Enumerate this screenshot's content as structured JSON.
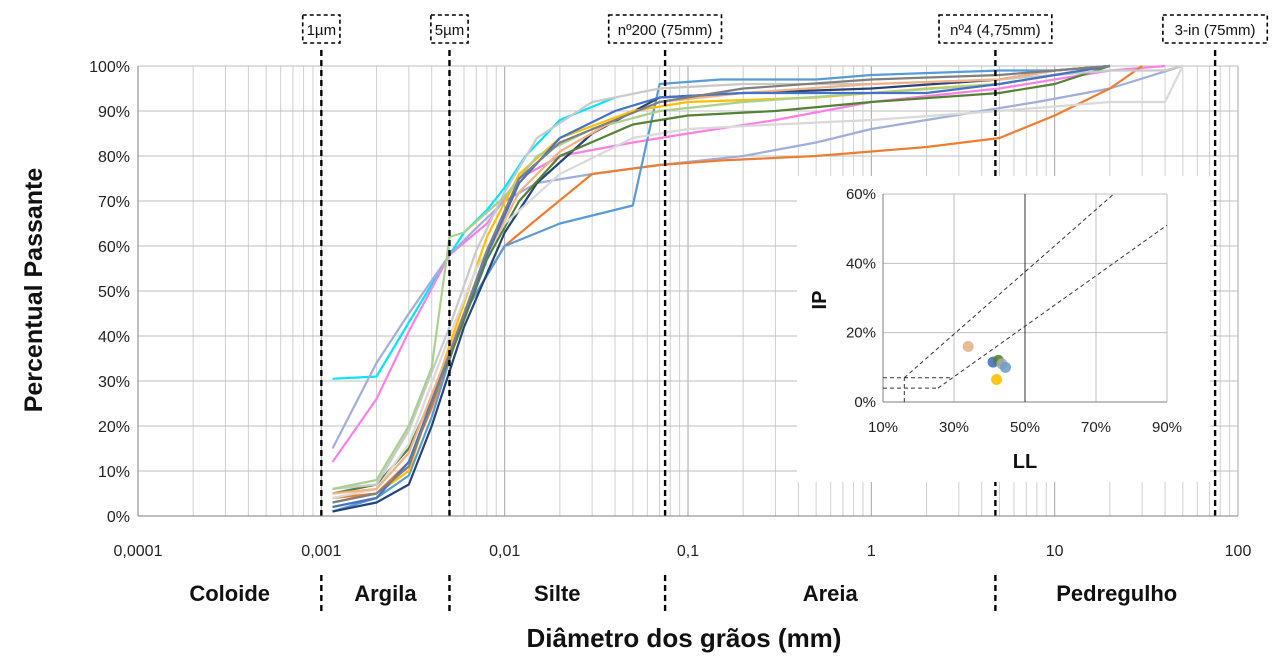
{
  "chart_data": [
    {
      "type": "line",
      "ylabel": "Percentual Passante",
      "xlabel": "Diâmetro dos grãos (mm)",
      "x_scale": "log",
      "xlim": [
        0.0001,
        100
      ],
      "ylim": [
        0,
        100
      ],
      "x_ticks": [
        "0,0001",
        "0,001",
        "0,01",
        "0,1",
        "1",
        "10",
        "100"
      ],
      "y_ticks": [
        "0%",
        "10%",
        "20%",
        "30%",
        "40%",
        "50%",
        "60%",
        "70%",
        "80%",
        "90%",
        "100%"
      ],
      "grid": true,
      "reference_lines": [
        {
          "label": "1µm",
          "x": 0.001
        },
        {
          "label": "5µm",
          "x": 0.005
        },
        {
          "label": "nº200 (75mm)",
          "x": 0.075
        },
        {
          "label": "nº4 (4,75mm)",
          "x": 4.75
        },
        {
          "label": "3-in (75mm)",
          "x": 75
        }
      ],
      "soil_classes": [
        "Coloide",
        "Argila",
        "Silte",
        "Areia",
        "Pedregulho"
      ],
      "series": [
        {
          "color": "#00e5ff",
          "x": [
            0.00115,
            0.002,
            0.003,
            0.005,
            0.006,
            0.008,
            0.01,
            0.013,
            0.02,
            0.04
          ],
          "y": [
            30.5,
            31,
            43,
            58,
            63,
            68,
            73,
            80,
            88,
            93
          ]
        },
        {
          "color": "#ff7fe5",
          "x": [
            0.00115,
            0.002,
            0.003,
            0.005,
            0.008,
            0.012,
            0.02,
            0.05,
            0.1,
            0.3,
            1,
            5,
            10,
            20,
            40
          ],
          "y": [
            12,
            26,
            41,
            58,
            65,
            75,
            80,
            83,
            85,
            88,
            92,
            95,
            97,
            99,
            100
          ]
        },
        {
          "color": "#a0aedb",
          "x": [
            0.00115,
            0.002,
            0.003,
            0.005,
            0.007,
            0.01,
            0.015,
            0.03,
            0.07,
            0.2,
            0.5,
            1,
            2,
            4,
            8,
            20,
            50
          ],
          "y": [
            15,
            34,
            45,
            58,
            64,
            70,
            74,
            76,
            78,
            80,
            83,
            86,
            88,
            90,
            92,
            95,
            100
          ]
        },
        {
          "color": "#ed7d31",
          "x": [
            0.00115,
            0.002,
            0.003,
            0.004,
            0.006,
            0.01,
            0.015,
            0.03,
            0.07,
            0.15,
            0.5,
            1,
            2,
            5,
            10,
            20,
            30
          ],
          "y": [
            4,
            5,
            12,
            24,
            45,
            60,
            66,
            76,
            78,
            79,
            80,
            81,
            82,
            84,
            89,
            95,
            100
          ]
        },
        {
          "color": "#5b9bd5",
          "x": [
            0.00115,
            0.002,
            0.003,
            0.004,
            0.006,
            0.01,
            0.02,
            0.05,
            0.07,
            0.15,
            0.5,
            1,
            5,
            10,
            20
          ],
          "y": [
            1,
            4,
            9,
            22,
            45,
            60,
            65,
            69,
            96,
            97,
            97,
            98,
            99,
            99,
            100
          ]
        },
        {
          "color": "#264478",
          "x": [
            0.00115,
            0.002,
            0.003,
            0.004,
            0.006,
            0.01,
            0.015,
            0.03,
            0.07,
            0.2,
            1,
            5,
            10,
            20
          ],
          "y": [
            1,
            3,
            7,
            20,
            42,
            63,
            74,
            85,
            93,
            94,
            95,
            97,
            99,
            100
          ]
        },
        {
          "color": "#548235",
          "x": [
            0.00115,
            0.002,
            0.003,
            0.005,
            0.008,
            0.012,
            0.02,
            0.05,
            0.1,
            0.3,
            1,
            5,
            10,
            20
          ],
          "y": [
            5,
            7,
            15,
            35,
            57,
            70,
            80,
            87,
            89,
            90,
            92,
            94,
            96,
            100
          ]
        },
        {
          "color": "#ffc000",
          "x": [
            0.00115,
            0.002,
            0.003,
            0.005,
            0.008,
            0.012,
            0.02,
            0.05,
            0.1,
            0.5,
            2,
            5,
            10,
            20
          ],
          "y": [
            3,
            5,
            10,
            38,
            62,
            76,
            84,
            90,
            92,
            93,
            95,
            96,
            98,
            100
          ]
        },
        {
          "color": "#c9c9c9",
          "x": [
            0.00115,
            0.002,
            0.003,
            0.005,
            0.007,
            0.01,
            0.015,
            0.03,
            0.07,
            0.2,
            1,
            5,
            10,
            20,
            40,
            50
          ],
          "y": [
            6,
            7,
            19,
            42,
            59,
            72,
            84,
            92,
            95,
            96,
            96,
            97,
            98,
            99,
            99,
            100
          ]
        },
        {
          "color": "#d9d9d9",
          "x": [
            0.00115,
            0.002,
            0.003,
            0.005,
            0.007,
            0.01,
            0.02,
            0.05,
            0.1,
            0.3,
            1,
            5,
            10,
            20,
            40,
            50
          ],
          "y": [
            4,
            6,
            16,
            40,
            55,
            65,
            76,
            84,
            86,
            87,
            88,
            90,
            91,
            92,
            92,
            100
          ]
        },
        {
          "color": "#a9d08e",
          "x": [
            0.00115,
            0.002,
            0.003,
            0.004,
            0.005,
            0.006,
            0.01,
            0.015,
            0.03,
            0.07,
            0.2,
            1,
            5,
            10,
            20
          ],
          "y": [
            6,
            8,
            20,
            33,
            62,
            63,
            71,
            80,
            86,
            90,
            92,
            94,
            96,
            98,
            100
          ]
        },
        {
          "color": "#f4b183",
          "x": [
            0.00115,
            0.002,
            0.003,
            0.005,
            0.008,
            0.012,
            0.02,
            0.04,
            0.07,
            0.2,
            1,
            5,
            10,
            20
          ],
          "y": [
            5,
            6,
            14,
            37,
            58,
            72,
            81,
            88,
            92,
            94,
            96,
            97,
            99,
            100
          ]
        },
        {
          "color": "#4472c4",
          "x": [
            0.00115,
            0.002,
            0.003,
            0.005,
            0.008,
            0.012,
            0.02,
            0.04,
            0.07,
            0.2,
            1,
            2,
            5,
            10,
            20
          ],
          "y": [
            2,
            4,
            12,
            36,
            58,
            74,
            84,
            90,
            93,
            94,
            94,
            94,
            96,
            98,
            100
          ]
        },
        {
          "color": "#7f7f7f",
          "x": [
            0.00115,
            0.002,
            0.003,
            0.005,
            0.008,
            0.012,
            0.02,
            0.04,
            0.07,
            0.2,
            1,
            5,
            10,
            20
          ],
          "y": [
            3,
            5,
            11,
            36,
            59,
            75,
            83,
            88,
            92,
            95,
            97,
            98,
            99,
            100
          ]
        }
      ]
    },
    {
      "type": "scatter",
      "xlabel": "LL",
      "ylabel": "IP",
      "xlim": [
        10,
        90
      ],
      "ylim": [
        0,
        60
      ],
      "x_ticks": [
        "10%",
        "30%",
        "50%",
        "70%",
        "90%"
      ],
      "y_ticks": [
        "0%",
        "20%",
        "40%",
        "60%"
      ],
      "grid": true,
      "points": [
        {
          "x": 34,
          "y": 16,
          "color": "#e6b48c"
        },
        {
          "x": 41,
          "y": 11.5,
          "color": "#4472c4"
        },
        {
          "x": 42.5,
          "y": 12,
          "color": "#548235"
        },
        {
          "x": 43.5,
          "y": 11,
          "color": "#a9a9a9"
        },
        {
          "x": 44.5,
          "y": 10,
          "color": "#70a0c8"
        },
        {
          "x": 42,
          "y": 6.5,
          "color": "#ffc000"
        }
      ]
    }
  ]
}
